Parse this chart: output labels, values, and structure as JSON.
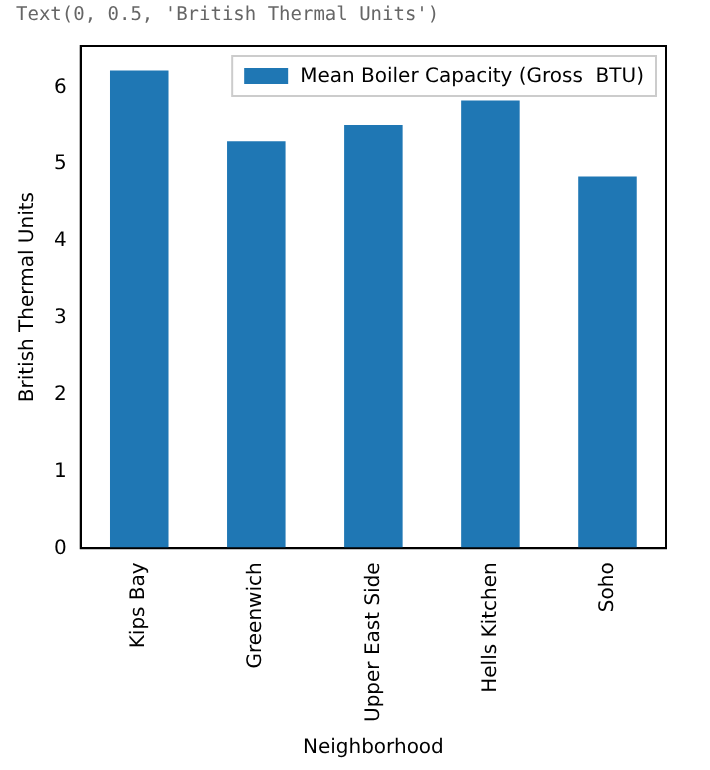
{
  "chart_data": {
    "type": "bar",
    "annotations": [
      "Text(0, 0.5, 'British Thermal Units')"
    ],
    "xlabel": "Neighborhood",
    "ylabel": "British Thermal Units",
    "categories": [
      "Kips Bay",
      "Greenwich",
      "Upper East Side",
      "Hells Kitchen",
      "Soho"
    ],
    "series": [
      {
        "name": "Mean Boiler Capacity (Gross  BTU)",
        "color": "#1f77b4",
        "values": [
          6.22,
          5.3,
          5.51,
          5.83,
          4.84
        ]
      }
    ],
    "ylim": [
      0,
      6.54
    ],
    "yticks": [
      0,
      1,
      2,
      3,
      4,
      5,
      6
    ],
    "grid": false,
    "legend": "top right"
  }
}
